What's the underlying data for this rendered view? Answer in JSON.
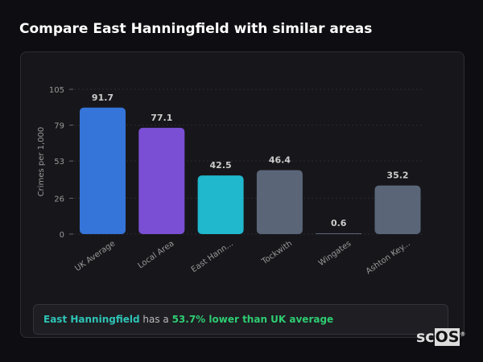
{
  "title": "Compare East Hanningfield with similar areas",
  "chart_data": {
    "type": "bar",
    "ylabel": "Crimes per 1,000",
    "yticks": [
      0,
      26,
      53,
      79,
      105
    ],
    "ylim": [
      0,
      105
    ],
    "grid": true,
    "categories": [
      "UK Average",
      "Local Area",
      "East Hann...",
      "Tockwith",
      "Wingates",
      "Ashton Key..."
    ],
    "values": [
      91.7,
      77.1,
      42.5,
      46.4,
      0.6,
      35.2
    ],
    "value_labels": [
      "91.7",
      "77.1",
      "42.5",
      "46.4",
      "0.6",
      "35.2"
    ],
    "colors": [
      "#3574d8",
      "#7b4fd4",
      "#1fb8cd",
      "#5a6578",
      "#5a6578",
      "#5a6578"
    ]
  },
  "summary": {
    "area": "East Hanningfield",
    "middle": " has a ",
    "comparison": "53.7% lower than UK average"
  },
  "logo": {
    "text1": "sc",
    "text2": "OS",
    "mark": "®"
  }
}
